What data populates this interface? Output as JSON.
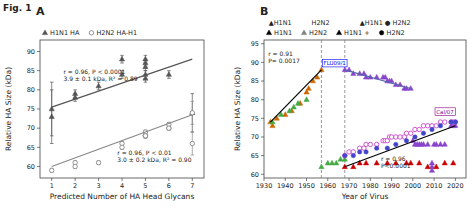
{
  "title": "Fig. 1",
  "chart_data": [
    {
      "type": "scatter",
      "title": "A",
      "xlabel": "Predicted Number of HA Head Glycans",
      "ylabel": "Relative HA Size (kDa)",
      "xlim": [
        0.5,
        7.5
      ],
      "ylim": [
        57,
        93
      ],
      "xticks": [
        1,
        2,
        3,
        4,
        5,
        6,
        7
      ],
      "yticks": [
        60,
        65,
        70,
        75,
        80,
        85,
        90
      ],
      "grid": false,
      "legend": "top",
      "series": [
        {
          "name": "H1N1 HA",
          "type": "scatter",
          "marker": "triangle",
          "color": "#555555",
          "x": [
            1,
            1,
            2,
            2,
            3,
            4,
            4,
            5,
            5,
            5,
            5,
            5,
            6,
            7
          ],
          "values": [
            75,
            73,
            79,
            78,
            81,
            84,
            88,
            87,
            88,
            86,
            84,
            83,
            84,
            74
          ],
          "errors": [
            7,
            7,
            1,
            1,
            1,
            1,
            1,
            1,
            1,
            1,
            1,
            1,
            1,
            5
          ]
        },
        {
          "name": "H2N2 HA-H1",
          "type": "scatter",
          "marker": "open-circle",
          "color": "#888888",
          "x": [
            1,
            2,
            2,
            3,
            4,
            4,
            5,
            5,
            5,
            5,
            6,
            6,
            6,
            7,
            7
          ],
          "values": [
            59,
            61,
            60,
            61,
            66,
            65,
            68,
            68,
            69,
            68,
            70,
            71,
            70,
            74,
            66
          ],
          "errors": [
            0.5,
            0.5,
            0.5,
            0.5,
            0.5,
            0.5,
            0.5,
            0.5,
            0.5,
            0.5,
            0.5,
            0.5,
            0.5,
            3,
            3
          ]
        },
        {
          "type": "line",
          "color": "#555555",
          "x": [
            1,
            7
          ],
          "values": [
            75.5,
            88.0
          ]
        },
        {
          "type": "line",
          "color": "#888888",
          "x": [
            1,
            7
          ],
          "values": [
            60.0,
            73.5
          ]
        }
      ],
      "annotations": [
        {
          "text": "r = 0.96, P < 0.0001\n3.9 ± 0.1 kDa, R² = 0.89",
          "x": 1.5,
          "y": 82
        },
        {
          "text": "r = 0.96, P < 0.01\n3.0 ± 0.2 kDa, R² = 0.90",
          "x": 3.8,
          "y": 61
        }
      ]
    },
    {
      "type": "scatter",
      "title": "B",
      "xlabel": "Year of Virus",
      "ylabel": "Relative HA Size (kDa)",
      "xlim": [
        1930,
        2025
      ],
      "ylim": [
        59,
        96
      ],
      "xticks": [
        1930,
        1940,
        1950,
        1960,
        1970,
        1980,
        1990,
        2000,
        2010,
        2020
      ],
      "yticks": [
        60,
        65,
        70,
        75,
        80,
        85,
        90,
        95
      ],
      "grid": false,
      "legend": "top",
      "vlines": [
        1957,
        1968
      ],
      "header_labels": [
        "▲H1N1",
        "H2N2",
        "▲H1N1 ● H2N2"
      ],
      "legend_entries": [
        {
          "label": "H1N1",
          "marker": "triangle",
          "color": "black"
        },
        {
          "label": "H2N2",
          "marker": "triangle",
          "color": "gray"
        },
        {
          "label": "H1N1 +",
          "marker": "triangle",
          "color": "black"
        },
        {
          "label": "H2N2",
          "marker": "circle",
          "color": "black"
        }
      ],
      "series": [
        {
          "type": "scatter",
          "marker": "triangle",
          "color": "#cc6600",
          "x": [
            1933,
            1934,
            1936,
            1940,
            1943,
            1947,
            1950,
            1951,
            1953,
            1955,
            1957
          ],
          "values": [
            74,
            73,
            75,
            76,
            77,
            79,
            82,
            83,
            85,
            86,
            88
          ]
        },
        {
          "type": "scatter",
          "marker": "triangle",
          "color": "#44aa44",
          "x": [
            1934,
            1938,
            1942,
            1944,
            1946,
            1950
          ],
          "values": [
            74,
            76,
            77,
            78,
            79,
            80
          ]
        },
        {
          "type": "line",
          "color": "black",
          "x": [
            1933,
            1957
          ],
          "values": [
            74,
            88
          ]
        },
        {
          "type": "scatter",
          "marker": "triangle",
          "color": "#44aa44",
          "x": [
            1957,
            1960,
            1962,
            1964,
            1966,
            1968
          ],
          "values": [
            62,
            63,
            63,
            63,
            64,
            64
          ]
        },
        {
          "type": "scatter",
          "marker": "triangle",
          "color": "#8844cc",
          "x": [
            1968,
            1970,
            1972,
            1975,
            1977,
            1978,
            1980,
            1983,
            1986,
            1987,
            1988,
            1989,
            1990,
            1992,
            1994,
            1996,
            1997,
            1999,
            2000,
            2001,
            2002,
            2003,
            2004,
            2005,
            2007,
            2009,
            2009,
            2009,
            2010,
            2011,
            2013,
            2015,
            2018,
            2019,
            2020
          ],
          "values": [
            88,
            88,
            87,
            87,
            87,
            86,
            86,
            86,
            86,
            86,
            85,
            85,
            85,
            84,
            84,
            83,
            83,
            83,
            69,
            68,
            68,
            68,
            68,
            68,
            68,
            63,
            62,
            61,
            68,
            68,
            68,
            68,
            73,
            73,
            73
          ]
        },
        {
          "type": "scatter",
          "marker": "open-circle",
          "color": "#cc44cc",
          "x": [
            1968,
            1970,
            1972,
            1975,
            1977,
            1978,
            1980,
            1983,
            1986,
            1987,
            1988,
            1989,
            1990,
            1992,
            1994,
            1996,
            1997,
            1999,
            2001,
            2003,
            2005,
            2007,
            2009,
            2011,
            2013,
            2015,
            2018,
            2019,
            2020
          ],
          "values": [
            65,
            66,
            66,
            67,
            67,
            68,
            68,
            68,
            69,
            69,
            69,
            70,
            70,
            70,
            70,
            70,
            71,
            71,
            72,
            72,
            73,
            73,
            73,
            73,
            74,
            74,
            74,
            74,
            74
          ]
        },
        {
          "type": "scatter",
          "marker": "triangle",
          "color": "#cc0000",
          "x": [
            1968,
            1972,
            1975,
            1978,
            1983,
            1988,
            1992,
            1997,
            1999,
            2003,
            2007,
            2011,
            2015,
            2019
          ],
          "values": [
            62,
            62,
            63,
            63,
            63,
            63,
            63,
            63,
            63,
            63,
            62,
            62,
            63,
            63
          ]
        },
        {
          "type": "scatter",
          "marker": "circle",
          "color": "#4444cc",
          "x": [
            1968,
            1972,
            1975,
            1978,
            1983,
            1988,
            1992,
            1997,
            2001,
            2005,
            2009,
            2013,
            2018,
            2020
          ],
          "values": [
            65,
            65,
            66,
            66,
            67,
            67,
            68,
            69,
            70,
            71,
            72,
            73,
            74,
            74
          ]
        },
        {
          "type": "line",
          "color": "black",
          "x": [
            1968,
            2020
          ],
          "values": [
            62,
            73
          ]
        },
        {
          "type": "line",
          "color": "#5566aa",
          "x": [
            1968,
            1999
          ],
          "values": [
            88,
            83
          ]
        }
      ],
      "annotations": [
        {
          "text": "r = 0.91\nP= 0.0017",
          "x": 1932,
          "y": 89.5
        },
        {
          "text": "r = 0.96\nP<0.0001",
          "x": 1985,
          "y": 61.5
        },
        {
          "text": "FLU09/1",
          "x": 1958,
          "y": 89,
          "color": "blue",
          "boxed": true
        },
        {
          "text": "Cal/07",
          "x": 2011,
          "y": 76,
          "color": "darkmagenta",
          "boxed": true
        }
      ]
    }
  ]
}
